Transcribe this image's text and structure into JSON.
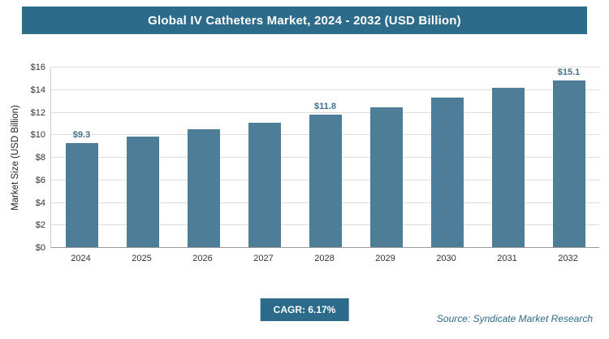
{
  "header": {
    "title": "Global IV Catheters Market, 2024 - 2032 (USD Billion)"
  },
  "chart_data": {
    "type": "bar",
    "title": "Global IV Catheters Market, 2024 - 2032 (USD Billion)",
    "categories": [
      "2024",
      "2025",
      "2026",
      "2027",
      "2028",
      "2029",
      "2030",
      "2031",
      "2032"
    ],
    "values": [
      9.3,
      9.9,
      10.5,
      11.1,
      11.8,
      12.5,
      13.3,
      14.2,
      15.1
    ],
    "data_labels": [
      "$9.3",
      "",
      "",
      "",
      "$11.8",
      "",
      "",
      "",
      "$15.1"
    ],
    "xlabel": "",
    "ylabel": "Market Size (USD Billion)",
    "ylim": [
      0,
      16
    ],
    "ytick_step": 2,
    "ytick_labels": [
      "$0",
      "$2",
      "$4",
      "$6",
      "$8",
      "$10",
      "$12",
      "$14",
      "$16"
    ],
    "grid": true,
    "legend": false
  },
  "footer": {
    "cagr_label": "CAGR: 6.17%",
    "source": "Source: Syndicate Market Research"
  },
  "colors": {
    "header_bg": "#2d6b8a",
    "bar": "#4e7d97",
    "accent_text": "#2d6b8a",
    "grid": "#dedede",
    "data_label": "#41708c"
  }
}
